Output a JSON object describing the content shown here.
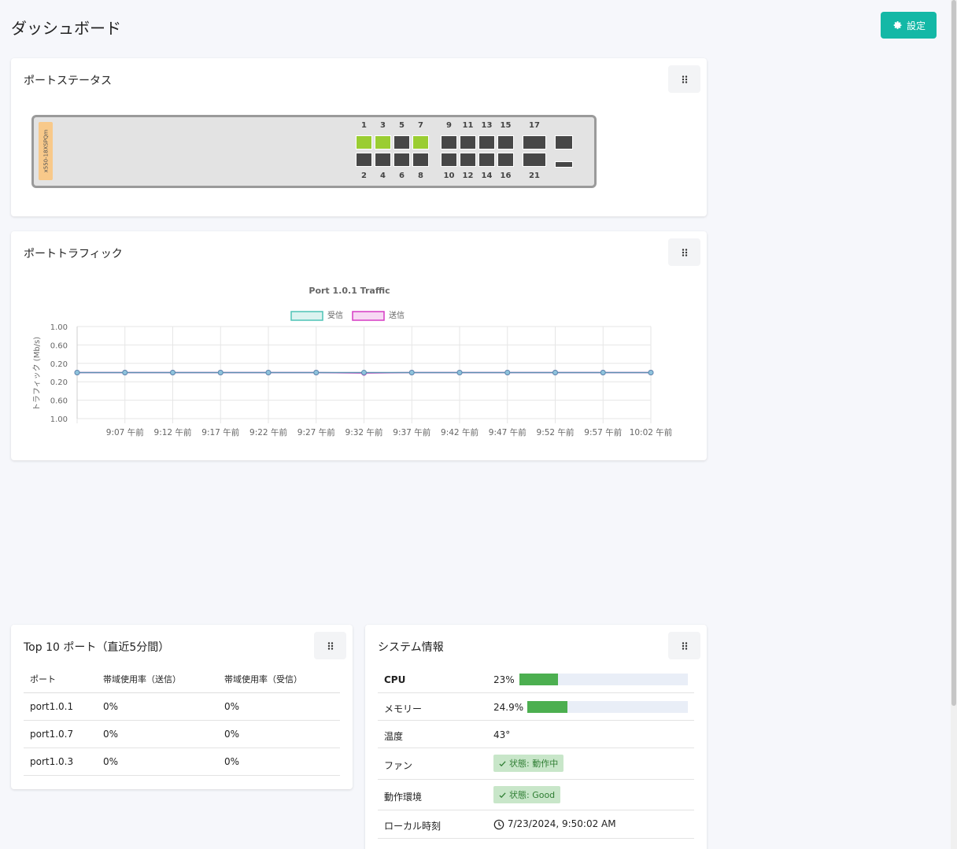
{
  "header": {
    "title": "ダッシュボード",
    "settings_label": "設定"
  },
  "port_status": {
    "title": "ポートステータス",
    "model": "x550-18XSPQm",
    "top_labels": [
      "1",
      "3",
      "5",
      "7",
      "9",
      "11",
      "13",
      "15",
      "17"
    ],
    "bottom_labels": [
      "2",
      "4",
      "6",
      "8",
      "10",
      "12",
      "14",
      "16",
      "21"
    ],
    "port_states": {
      "1": "up",
      "3": "up",
      "7": "up",
      "5": "down",
      "2": "down",
      "4": "down",
      "6": "down",
      "8": "down",
      "9": "down",
      "10": "down",
      "11": "down",
      "12": "down",
      "13": "down",
      "14": "down",
      "15": "down",
      "16": "down",
      "17": "down",
      "21": "down"
    },
    "colors": {
      "up": "#9acd32",
      "down": "#474747"
    }
  },
  "port_traffic": {
    "title": "ポートトラフィック"
  },
  "chart_data": {
    "type": "line",
    "title": "Port 1.0.1 Traffic",
    "xlabel": "",
    "ylabel": "トラフィック (Mb/s)",
    "y_tick_labels": [
      "1.00",
      "0.60",
      "0.20",
      "0.20",
      "0.60",
      "1.00"
    ],
    "ylim": [
      -1,
      1
    ],
    "categories": [
      "",
      "9:07 午前",
      "9:12 午前",
      "9:17 午前",
      "9:22 午前",
      "9:27 午前",
      "9:32 午前",
      "9:37 午前",
      "9:42 午前",
      "9:47 午前",
      "9:52 午前",
      "9:57 午前",
      "10:02 午前"
    ],
    "series": [
      {
        "name": "受信",
        "color": "#4fc3b6",
        "values": [
          0,
          0,
          0,
          0,
          0,
          0,
          0,
          0,
          0,
          0,
          0,
          0,
          0
        ]
      },
      {
        "name": "送信",
        "color": "#d63cc4",
        "values": [
          0,
          0,
          0,
          0,
          0,
          0,
          -0.01,
          0,
          0,
          0,
          0,
          0,
          0
        ]
      }
    ],
    "grid": true,
    "legend": "top"
  },
  "top10": {
    "title": "Top 10 ポート（直近5分間）",
    "columns": [
      "ポート",
      "帯域使用率（送信）",
      "帯域使用率（受信）"
    ],
    "rows": [
      [
        "port1.0.1",
        "0%",
        "0%"
      ],
      [
        "port1.0.7",
        "0%",
        "0%"
      ],
      [
        "port1.0.3",
        "0%",
        "0%"
      ]
    ]
  },
  "system": {
    "title": "システム情報",
    "cpu_label": "CPU",
    "cpu_value": "23%",
    "cpu_fraction": 0.23,
    "memory_label": "メモリー",
    "memory_value": "24.9%",
    "memory_fraction": 0.249,
    "temp_label": "温度",
    "temp_value": "43°",
    "fan_label": "ファン",
    "fan_status": "状態: 動作中",
    "env_label": "動作環境",
    "env_status": "状態: Good",
    "time_label": "ローカル時刻",
    "time_value": "7/23/2024, 9:50:02 AM"
  }
}
